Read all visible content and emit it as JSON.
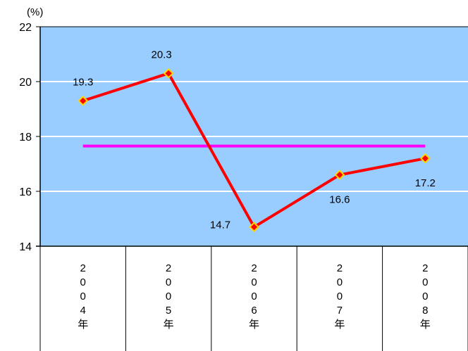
{
  "chart_data": {
    "type": "line",
    "unit_label": "(%)",
    "categories": [
      "2004年",
      "2005年",
      "2006年",
      "2007年",
      "2008年"
    ],
    "category_chars": [
      [
        "2",
        "0",
        "0",
        "4",
        "年"
      ],
      [
        "2",
        "0",
        "0",
        "5",
        "年"
      ],
      [
        "2",
        "0",
        "0",
        "6",
        "年"
      ],
      [
        "2",
        "0",
        "0",
        "7",
        "年"
      ],
      [
        "2",
        "0",
        "0",
        "8",
        "年"
      ]
    ],
    "series": [
      {
        "values": [
          19.3,
          20.3,
          14.7,
          16.6,
          17.2
        ],
        "value_labels": [
          "19.3",
          "20.3",
          "14.7",
          "16.6",
          "17.2"
        ],
        "color": "#ff0000",
        "marker_color": "#ffd700"
      }
    ],
    "reference_line": {
      "value": 17.65,
      "color": "#ff00ff"
    },
    "ylim": [
      14,
      22
    ],
    "yticks": [
      14,
      16,
      18,
      20,
      22
    ],
    "ytick_labels": [
      "14",
      "16",
      "18",
      "20",
      "22"
    ],
    "grid": true,
    "plot_background": "#99ccff",
    "grid_color": "#ffffff"
  }
}
